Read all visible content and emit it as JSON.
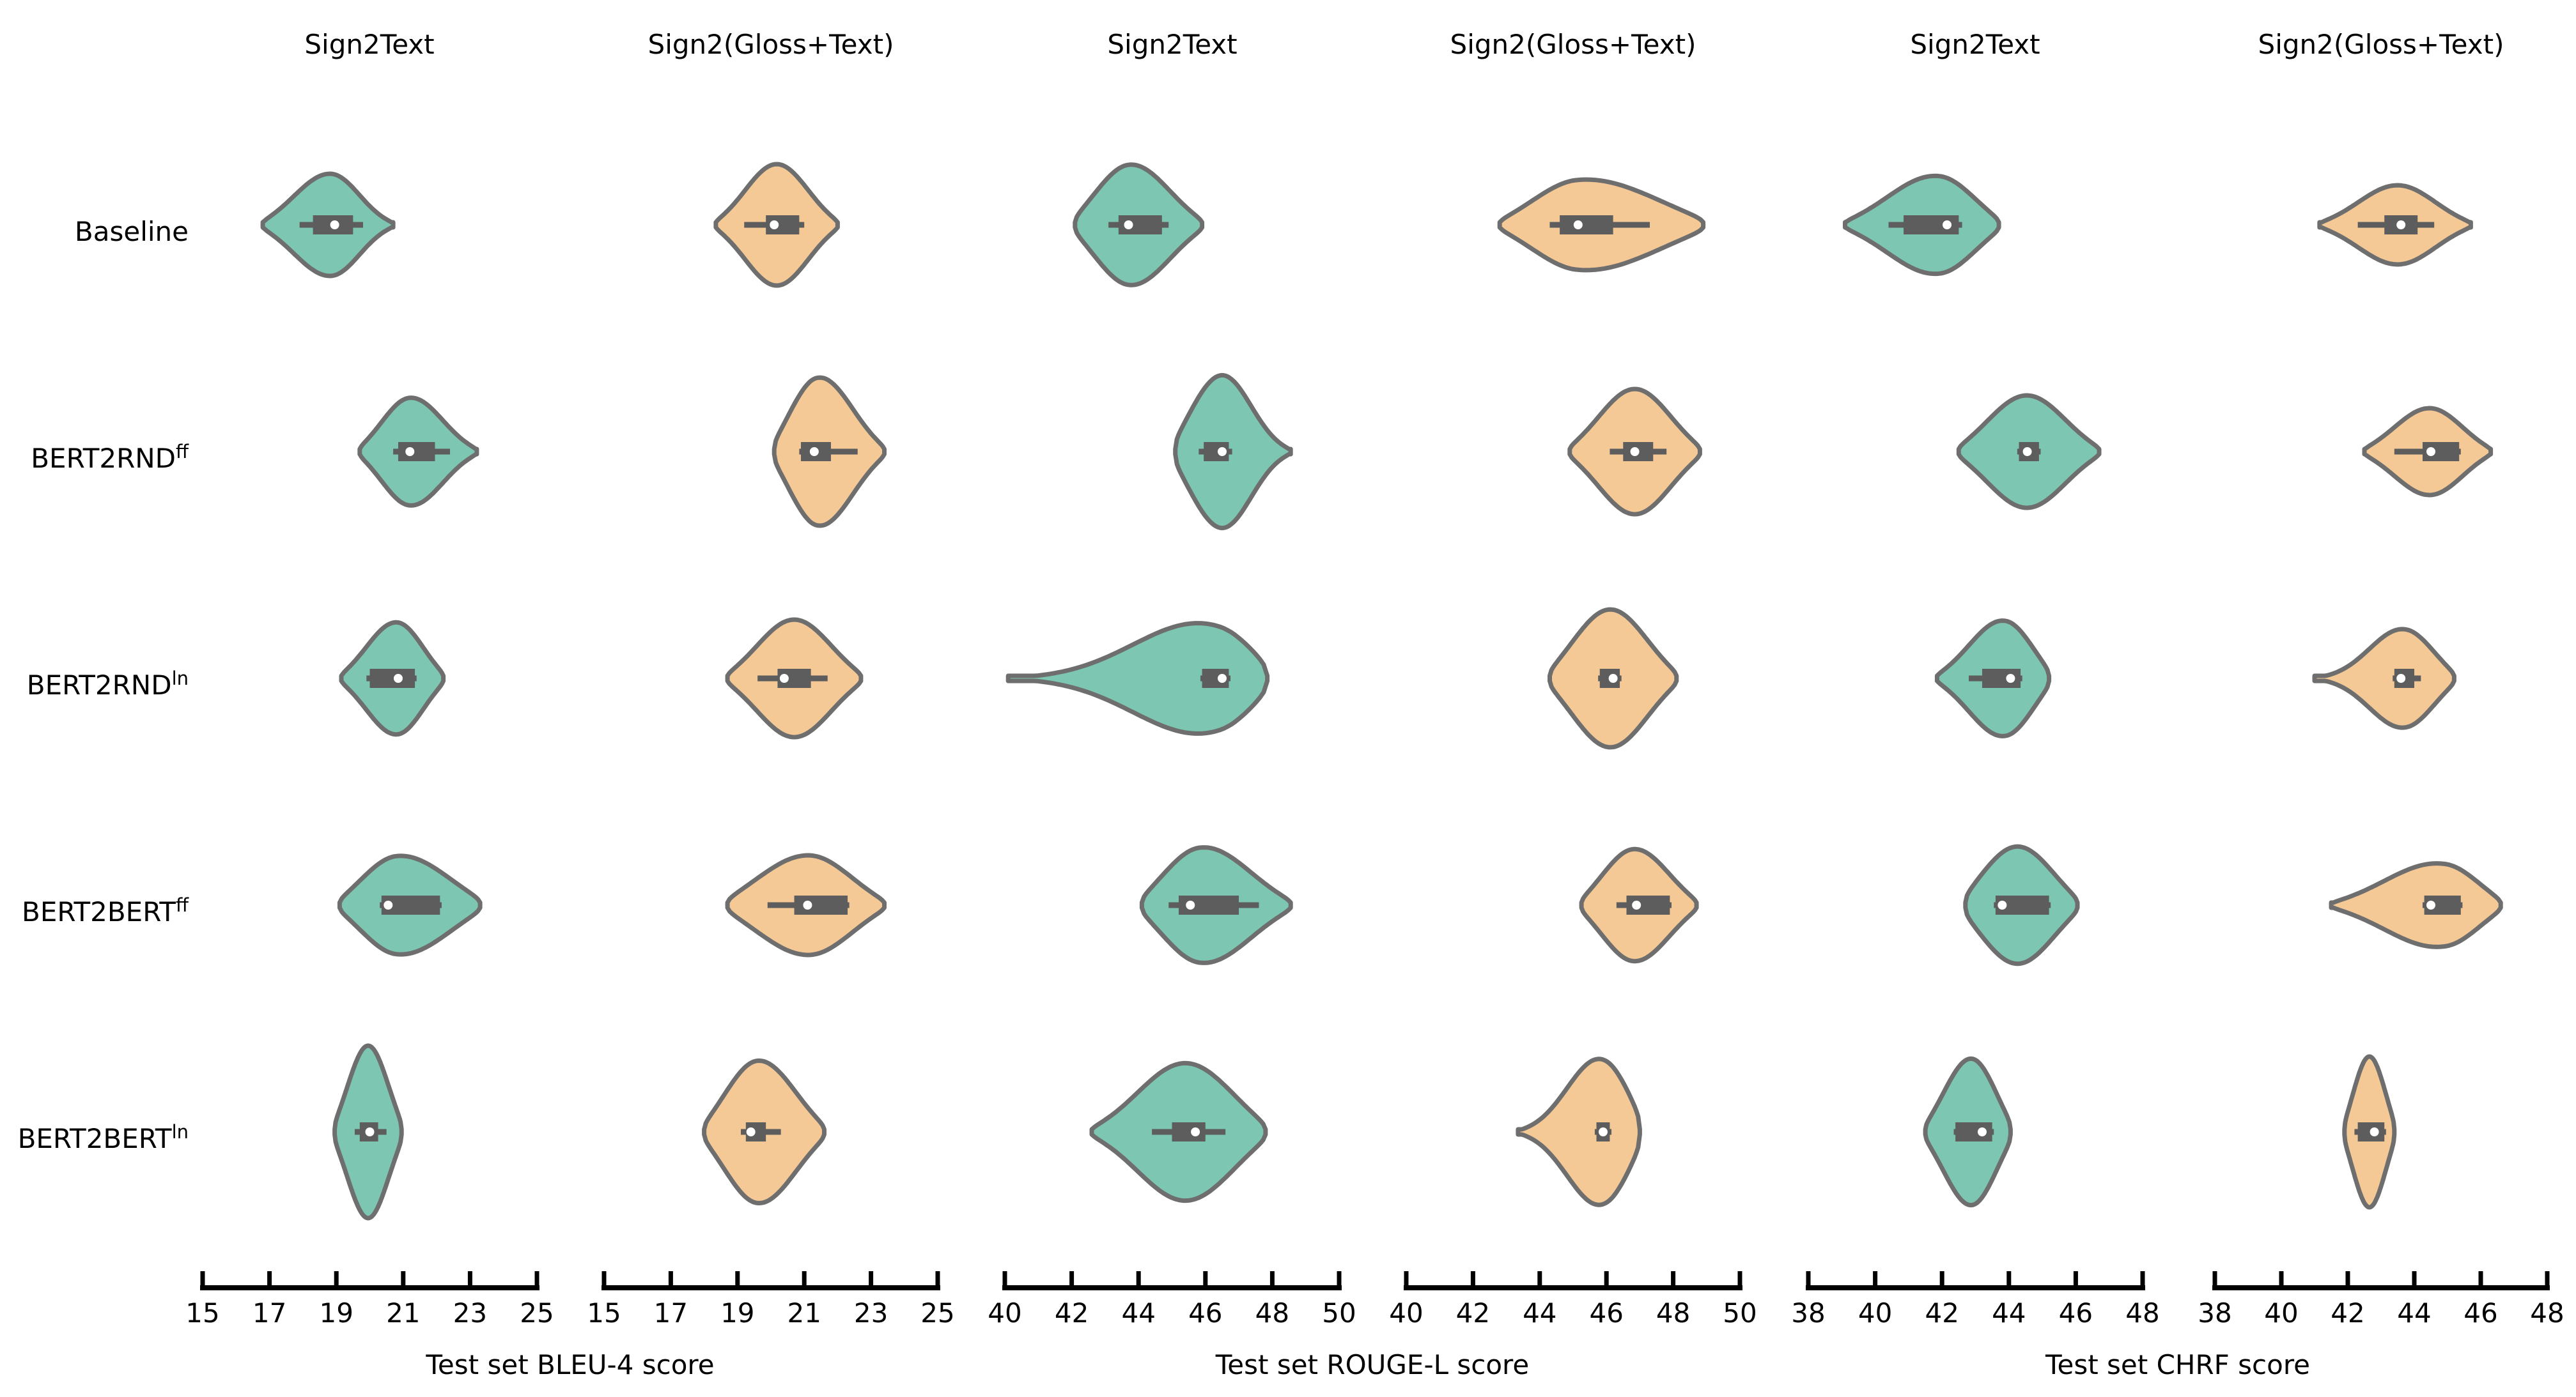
{
  "figure": {
    "col_titles": [
      "Sign2Text",
      "Sign2(Gloss+Text)",
      "Sign2Text",
      "Sign2(Gloss+Text)",
      "Sign2Text",
      "Sign2(Gloss+Text)"
    ],
    "row_labels": [
      {
        "base": "Baseline",
        "sup": ""
      },
      {
        "base": "BERT2RND",
        "sup": "ff"
      },
      {
        "base": "BERT2RND",
        "sup": "ln"
      },
      {
        "base": "BERT2BERT",
        "sup": "ff"
      },
      {
        "base": "BERT2BERT",
        "sup": "ln"
      }
    ],
    "axis_labels": [
      {
        "text": "Test set BLEU-4 score"
      },
      {
        "text": "Test set ROUGE-L score"
      },
      {
        "text": "Test set CHRF score"
      }
    ]
  },
  "chart_data": {
    "type": "violin",
    "orientation": "horizontal",
    "grid": false,
    "legend": "none",
    "edge_color": "#6e6e6e",
    "box_color": "#5d5d5d",
    "median_dot_color": "#ffffff",
    "axis_color": "#000000",
    "rows": [
      "Baseline",
      "BERT2RND^ff",
      "BERT2RND^ln",
      "BERT2BERT^ff",
      "BERT2BERT^ln"
    ],
    "panels": [
      {
        "task": "Sign2Text",
        "metric": "BLEU-4",
        "xlabel": "Test set BLEU-4 score",
        "color": "#7dc7b2",
        "xlim": [
          15,
          25
        ],
        "xticks": [
          15,
          17,
          19,
          21,
          23,
          25
        ],
        "violins": [
          {
            "row": "Baseline",
            "min": 16.8,
            "whisker_lo": 17.9,
            "q1": 18.3,
            "median": 18.95,
            "q3": 19.5,
            "whisker_hi": 19.8,
            "max": 20.7,
            "peak_frac": 0.52,
            "spread_left": 0.3,
            "spread_right": 0.24,
            "thickness_px": 80
          },
          {
            "row": "BERT2RND^ff",
            "min": 19.7,
            "whisker_lo": 20.7,
            "q1": 20.85,
            "median": 21.2,
            "q3": 21.95,
            "whisker_hi": 22.4,
            "max": 23.2,
            "peak_frac": 0.42,
            "spread_left": 0.26,
            "spread_right": 0.3,
            "thickness_px": 85
          },
          {
            "row": "BERT2RND^ln",
            "min": 19.15,
            "whisker_lo": 19.9,
            "q1": 20.0,
            "median": 20.85,
            "q3": 21.35,
            "whisker_hi": 21.4,
            "max": 22.2,
            "peak_frac": 0.55,
            "spread_left": 0.32,
            "spread_right": 0.28,
            "thickness_px": 88
          },
          {
            "row": "BERT2BERT^ff",
            "min": 19.1,
            "whisker_lo": 20.3,
            "q1": 20.35,
            "median": 20.55,
            "q3": 22.1,
            "whisker_hi": 22.15,
            "max": 23.3,
            "peak_frac": 0.4,
            "spread_left": 0.28,
            "spread_right": 0.4,
            "thickness_px": 78
          },
          {
            "row": "BERT2BERT^ln",
            "min": 18.95,
            "whisker_lo": 19.55,
            "q1": 19.7,
            "median": 20.0,
            "q3": 20.25,
            "whisker_hi": 20.5,
            "max": 20.95,
            "peak_frac": 0.5,
            "spread_left": 0.33,
            "spread_right": 0.33,
            "thickness_px": 135
          }
        ]
      },
      {
        "task": "Sign2(Gloss+Text)",
        "metric": "BLEU-4",
        "xlabel": "Test set BLEU-4 score",
        "color": "#f4c996",
        "xlim": [
          15,
          25
        ],
        "xticks": [
          15,
          17,
          19,
          21,
          23,
          25
        ],
        "violins": [
          {
            "row": "Baseline",
            "min": 18.35,
            "whisker_lo": 19.2,
            "q1": 19.85,
            "median": 20.1,
            "q3": 20.85,
            "whisker_hi": 21.0,
            "max": 22.0,
            "peak_frac": 0.5,
            "spread_left": 0.28,
            "spread_right": 0.28,
            "thickness_px": 95
          },
          {
            "row": "BERT2RND^ff",
            "min": 20.1,
            "whisker_lo": 20.85,
            "q1": 20.9,
            "median": 21.3,
            "q3": 21.8,
            "whisker_hi": 22.6,
            "max": 23.4,
            "peak_frac": 0.38,
            "spread_left": 0.28,
            "spread_right": 0.34,
            "thickness_px": 118
          },
          {
            "row": "BERT2RND^ln",
            "min": 18.7,
            "whisker_lo": 19.6,
            "q1": 20.2,
            "median": 20.4,
            "q3": 21.2,
            "whisker_hi": 21.7,
            "max": 22.7,
            "peak_frac": 0.5,
            "spread_left": 0.3,
            "spread_right": 0.3,
            "thickness_px": 92
          },
          {
            "row": "BERT2BERT^ff",
            "min": 18.7,
            "whisker_lo": 19.9,
            "q1": 20.7,
            "median": 21.1,
            "q3": 22.3,
            "whisker_hi": 22.35,
            "max": 23.4,
            "peak_frac": 0.52,
            "spread_left": 0.36,
            "spread_right": 0.3,
            "thickness_px": 78
          },
          {
            "row": "BERT2BERT^ln",
            "min": 18.0,
            "whisker_lo": 19.1,
            "q1": 19.25,
            "median": 19.4,
            "q3": 19.85,
            "whisker_hi": 20.3,
            "max": 21.6,
            "peak_frac": 0.44,
            "spread_left": 0.3,
            "spread_right": 0.34,
            "thickness_px": 112
          }
        ]
      },
      {
        "task": "Sign2Text",
        "metric": "ROUGE-L",
        "xlabel": "Test set ROUGE-L score",
        "color": "#7dc7b2",
        "xlim": [
          40,
          50
        ],
        "xticks": [
          40,
          42,
          44,
          46,
          48,
          50
        ],
        "violins": [
          {
            "row": "Baseline",
            "min": 42.1,
            "whisker_lo": 43.1,
            "q1": 43.4,
            "median": 43.7,
            "q3": 44.7,
            "whisker_hi": 44.9,
            "max": 45.9,
            "peak_frac": 0.42,
            "spread_left": 0.3,
            "spread_right": 0.34,
            "thickness_px": 95
          },
          {
            "row": "BERT2RND^ff",
            "min": 45.1,
            "whisker_lo": 45.8,
            "q1": 45.95,
            "median": 46.5,
            "q3": 46.7,
            "whisker_hi": 46.8,
            "max": 48.55,
            "peak_frac": 0.38,
            "spread_left": 0.3,
            "spread_right": 0.28,
            "thickness_px": 122
          },
          {
            "row": "BERT2RND^ln",
            "min": 40.1,
            "whisker_lo": 45.85,
            "q1": 45.9,
            "median": 46.5,
            "q3": 46.7,
            "whisker_hi": 46.75,
            "max": 47.85,
            "peak_frac": 0.82,
            "spread_left": 0.3,
            "spread_right": 0.18,
            "thickness_px": 100
          },
          {
            "row": "BERT2BERT^ff",
            "min": 44.1,
            "whisker_lo": 44.9,
            "q1": 45.2,
            "median": 45.55,
            "q3": 47.0,
            "whisker_hi": 47.6,
            "max": 48.55,
            "peak_frac": 0.38,
            "spread_left": 0.28,
            "spread_right": 0.36,
            "thickness_px": 92
          },
          {
            "row": "BERT2BERT^ln",
            "min": 42.6,
            "whisker_lo": 44.4,
            "q1": 45.0,
            "median": 45.7,
            "q3": 46.0,
            "whisker_hi": 46.6,
            "max": 47.8,
            "peak_frac": 0.55,
            "spread_left": 0.3,
            "spread_right": 0.3,
            "thickness_px": 108
          }
        ]
      },
      {
        "task": "Sign2(Gloss+Text)",
        "metric": "ROUGE-L",
        "xlabel": "Test set ROUGE-L score",
        "color": "#f4c996",
        "xlim": [
          40,
          50
        ],
        "xticks": [
          40,
          42,
          44,
          46,
          48,
          50
        ],
        "violins": [
          {
            "row": "Baseline",
            "min": 42.8,
            "whisker_lo": 44.3,
            "q1": 44.6,
            "median": 45.15,
            "q3": 46.2,
            "whisker_hi": 47.3,
            "max": 48.9,
            "peak_frac": 0.38,
            "spread_left": 0.25,
            "spread_right": 0.42,
            "thickness_px": 72
          },
          {
            "row": "BERT2RND^ff",
            "min": 44.9,
            "whisker_lo": 46.1,
            "q1": 46.5,
            "median": 46.85,
            "q3": 47.4,
            "whisker_hi": 47.8,
            "max": 48.8,
            "peak_frac": 0.5,
            "spread_left": 0.3,
            "spread_right": 0.3,
            "thickness_px": 98
          },
          {
            "row": "BERT2RND^ln",
            "min": 44.3,
            "whisker_lo": 45.75,
            "q1": 45.8,
            "median": 46.2,
            "q3": 46.4,
            "whisker_hi": 46.45,
            "max": 48.1,
            "peak_frac": 0.47,
            "spread_left": 0.32,
            "spread_right": 0.32,
            "thickness_px": 108
          },
          {
            "row": "BERT2BERT^ff",
            "min": 45.25,
            "whisker_lo": 46.3,
            "q1": 46.6,
            "median": 46.9,
            "q3": 47.9,
            "whisker_hi": 47.95,
            "max": 48.7,
            "peak_frac": 0.45,
            "spread_left": 0.3,
            "spread_right": 0.33,
            "thickness_px": 88
          },
          {
            "row": "BERT2BERT^ln",
            "min": 43.35,
            "whisker_lo": 45.65,
            "q1": 45.7,
            "median": 45.9,
            "q3": 46.1,
            "whisker_hi": 46.15,
            "max": 47.0,
            "peak_frac": 0.72,
            "spread_left": 0.3,
            "spread_right": 0.26,
            "thickness_px": 122
          }
        ]
      },
      {
        "task": "Sign2Text",
        "metric": "CHRF",
        "xlabel": "Test set CHRF score",
        "color": "#7dc7b2",
        "xlim": [
          38,
          48
        ],
        "xticks": [
          38,
          40,
          42,
          44,
          46,
          48
        ],
        "violins": [
          {
            "row": "Baseline",
            "min": 39.1,
            "whisker_lo": 40.4,
            "q1": 40.85,
            "median": 42.15,
            "q3": 42.5,
            "whisker_hi": 42.6,
            "max": 43.7,
            "peak_frac": 0.62,
            "spread_left": 0.35,
            "spread_right": 0.26,
            "thickness_px": 78
          },
          {
            "row": "BERT2RND^ff",
            "min": 42.5,
            "whisker_lo": 44.25,
            "q1": 44.3,
            "median": 44.55,
            "q3": 44.9,
            "whisker_hi": 44.95,
            "max": 46.7,
            "peak_frac": 0.48,
            "spread_left": 0.3,
            "spread_right": 0.3,
            "thickness_px": 88
          },
          {
            "row": "BERT2RND^ln",
            "min": 41.85,
            "whisker_lo": 42.8,
            "q1": 43.2,
            "median": 44.05,
            "q3": 44.35,
            "whisker_hi": 44.4,
            "max": 45.2,
            "peak_frac": 0.62,
            "spread_left": 0.34,
            "spread_right": 0.28,
            "thickness_px": 92
          },
          {
            "row": "BERT2BERT^ff",
            "min": 42.7,
            "whisker_lo": 43.55,
            "q1": 43.6,
            "median": 43.8,
            "q3": 45.2,
            "whisker_hi": 45.25,
            "max": 46.05,
            "peak_frac": 0.45,
            "spread_left": 0.36,
            "spread_right": 0.36,
            "thickness_px": 92
          },
          {
            "row": "BERT2BERT^ln",
            "min": 41.5,
            "whisker_lo": 42.35,
            "q1": 42.4,
            "median": 43.2,
            "q3": 43.5,
            "whisker_hi": 43.55,
            "max": 44.05,
            "peak_frac": 0.55,
            "spread_left": 0.35,
            "spread_right": 0.32,
            "thickness_px": 115
          }
        ]
      },
      {
        "task": "Sign2(Gloss+Text)",
        "metric": "CHRF",
        "xlabel": "Test set CHRF score",
        "color": "#f4c996",
        "xlim": [
          38,
          48
        ],
        "xticks": [
          38,
          40,
          42,
          44,
          46,
          48
        ],
        "violins": [
          {
            "row": "Baseline",
            "min": 41.15,
            "whisker_lo": 42.3,
            "q1": 43.1,
            "median": 43.6,
            "q3": 44.1,
            "whisker_hi": 44.6,
            "max": 45.7,
            "peak_frac": 0.52,
            "spread_left": 0.28,
            "spread_right": 0.27,
            "thickness_px": 62
          },
          {
            "row": "BERT2RND^ff",
            "min": 42.5,
            "whisker_lo": 43.4,
            "q1": 44.25,
            "median": 44.5,
            "q3": 45.35,
            "whisker_hi": 45.4,
            "max": 46.3,
            "peak_frac": 0.52,
            "spread_left": 0.3,
            "spread_right": 0.28,
            "thickness_px": 68
          },
          {
            "row": "BERT2RND^ln",
            "min": 41.0,
            "whisker_lo": 43.35,
            "q1": 43.4,
            "median": 43.6,
            "q3": 44.0,
            "whisker_hi": 44.2,
            "max": 45.2,
            "peak_frac": 0.66,
            "spread_left": 0.26,
            "spread_right": 0.23,
            "thickness_px": 80
          },
          {
            "row": "BERT2BERT^ff",
            "min": 41.5,
            "whisker_lo": 44.25,
            "q1": 44.3,
            "median": 44.5,
            "q3": 45.4,
            "whisker_hi": 45.45,
            "max": 46.6,
            "peak_frac": 0.68,
            "spread_left": 0.36,
            "spread_right": 0.23,
            "thickness_px": 68
          },
          {
            "row": "BERT2BERT^ln",
            "min": 41.9,
            "whisker_lo": 42.2,
            "q1": 42.3,
            "median": 42.8,
            "q3": 43.1,
            "whisker_hi": 43.15,
            "max": 43.4,
            "peak_frac": 0.5,
            "spread_left": 0.35,
            "spread_right": 0.35,
            "thickness_px": 118
          }
        ]
      }
    ]
  }
}
